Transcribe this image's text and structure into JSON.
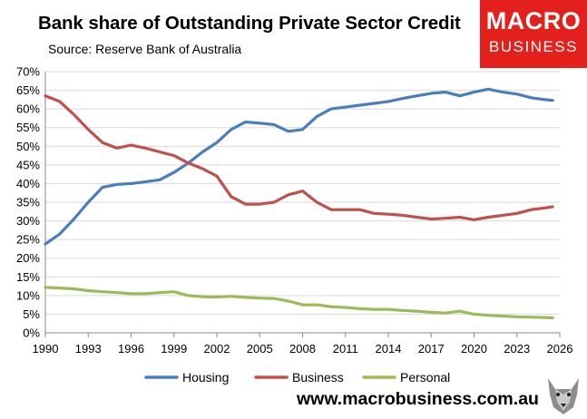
{
  "header": {
    "title": "Bank share of Outstanding Private Sector Credit",
    "subtitle": "Source: Reserve Bank of Australia"
  },
  "logo": {
    "line1": "MACRO",
    "line2": "BUSINESS"
  },
  "footer": {
    "url": "www.macrobusiness.com.au"
  },
  "colors": {
    "housing": "#4a7ebb",
    "business": "#c0504d",
    "personal": "#9bbb59",
    "logo_bg": "#e3201b"
  },
  "chart_data": {
    "type": "line",
    "title": "Bank share of Outstanding Private Sector Credit",
    "subtitle": "Source: Reserve Bank of Australia",
    "xlabel": "",
    "ylabel": "",
    "xlim": [
      1990,
      2026
    ],
    "ylim": [
      0,
      70
    ],
    "x_ticks": [
      "1990",
      "1993",
      "1996",
      "1999",
      "2002",
      "2005",
      "2008",
      "2011",
      "2014",
      "2017",
      "2020",
      "2023",
      "2026"
    ],
    "y_ticks": [
      "0%",
      "5%",
      "10%",
      "15%",
      "20%",
      "25%",
      "30%",
      "35%",
      "40%",
      "45%",
      "50%",
      "55%",
      "60%",
      "65%",
      "70%"
    ],
    "grid": "horizontal",
    "legend_position": "bottom",
    "series": [
      {
        "name": "Housing",
        "color": "#4a7ebb",
        "points": [
          [
            1990,
            23.8
          ],
          [
            1991,
            26.5
          ],
          [
            1992,
            30.5
          ],
          [
            1993,
            35
          ],
          [
            1994,
            39
          ],
          [
            1995,
            39.8
          ],
          [
            1996,
            40
          ],
          [
            1997,
            40.5
          ],
          [
            1998,
            41
          ],
          [
            1999,
            43
          ],
          [
            2000,
            45.5
          ],
          [
            2001,
            48.5
          ],
          [
            2002,
            51
          ],
          [
            2003,
            54.5
          ],
          [
            2004,
            56.5
          ],
          [
            2005,
            56.2
          ],
          [
            2006,
            55.8
          ],
          [
            2007,
            54
          ],
          [
            2008,
            54.5
          ],
          [
            2009,
            58
          ],
          [
            2010,
            60
          ],
          [
            2011,
            60.5
          ],
          [
            2012,
            61
          ],
          [
            2013,
            61.5
          ],
          [
            2014,
            62
          ],
          [
            2015,
            62.8
          ],
          [
            2016,
            63.5
          ],
          [
            2017,
            64.2
          ],
          [
            2018,
            64.5
          ],
          [
            2019,
            63.5
          ],
          [
            2020,
            64.5
          ],
          [
            2021,
            65.3
          ],
          [
            2022,
            64.5
          ],
          [
            2023,
            64
          ],
          [
            2024,
            63
          ],
          [
            2025,
            62.5
          ],
          [
            2025.5,
            62.3
          ]
        ]
      },
      {
        "name": "Business",
        "color": "#c0504d",
        "points": [
          [
            1990,
            63.5
          ],
          [
            1991,
            62
          ],
          [
            1992,
            58.5
          ],
          [
            1993,
            54.5
          ],
          [
            1994,
            51
          ],
          [
            1995,
            49.5
          ],
          [
            1996,
            50.3
          ],
          [
            1997,
            49.5
          ],
          [
            1998,
            48.5
          ],
          [
            1999,
            47.5
          ],
          [
            2000,
            45.5
          ],
          [
            2001,
            44
          ],
          [
            2002,
            42
          ],
          [
            2003,
            36.5
          ],
          [
            2004,
            34.5
          ],
          [
            2005,
            34.5
          ],
          [
            2006,
            35
          ],
          [
            2007,
            37
          ],
          [
            2008,
            38
          ],
          [
            2009,
            35
          ],
          [
            2010,
            33
          ],
          [
            2011,
            33
          ],
          [
            2012,
            33
          ],
          [
            2013,
            32
          ],
          [
            2014,
            31.8
          ],
          [
            2015,
            31.5
          ],
          [
            2016,
            31
          ],
          [
            2017,
            30.5
          ],
          [
            2018,
            30.7
          ],
          [
            2019,
            31
          ],
          [
            2020,
            30.3
          ],
          [
            2021,
            31
          ],
          [
            2022,
            31.5
          ],
          [
            2023,
            32
          ],
          [
            2024,
            33
          ],
          [
            2025,
            33.5
          ],
          [
            2025.5,
            33.8
          ]
        ]
      },
      {
        "name": "Personal",
        "color": "#9bbb59",
        "points": [
          [
            1990,
            12.2
          ],
          [
            1991,
            12
          ],
          [
            1992,
            11.8
          ],
          [
            1993,
            11.3
          ],
          [
            1994,
            11
          ],
          [
            1995,
            10.8
          ],
          [
            1996,
            10.5
          ],
          [
            1997,
            10.5
          ],
          [
            1998,
            10.8
          ],
          [
            1999,
            11
          ],
          [
            2000,
            10
          ],
          [
            2001,
            9.7
          ],
          [
            2002,
            9.6
          ],
          [
            2003,
            9.8
          ],
          [
            2004,
            9.5
          ],
          [
            2005,
            9.3
          ],
          [
            2006,
            9.2
          ],
          [
            2007,
            8.5
          ],
          [
            2008,
            7.5
          ],
          [
            2009,
            7.5
          ],
          [
            2010,
            7
          ],
          [
            2011,
            6.8
          ],
          [
            2012,
            6.5
          ],
          [
            2013,
            6.3
          ],
          [
            2014,
            6.3
          ],
          [
            2015,
            6
          ],
          [
            2016,
            5.8
          ],
          [
            2017,
            5.5
          ],
          [
            2018,
            5.3
          ],
          [
            2019,
            5.8
          ],
          [
            2020,
            5
          ],
          [
            2021,
            4.7
          ],
          [
            2022,
            4.5
          ],
          [
            2023,
            4.3
          ],
          [
            2024,
            4.2
          ],
          [
            2025,
            4.1
          ],
          [
            2025.5,
            4
          ]
        ]
      }
    ]
  }
}
